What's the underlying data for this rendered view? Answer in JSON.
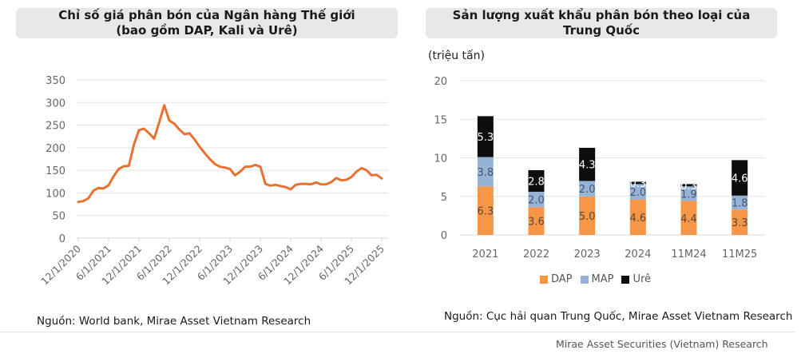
{
  "left_panel": {
    "title_line1": "Chỉ số giá phân bón của Ngân hàng Thế giới",
    "title_line2": "(bao gồm DAP, Kali và Urê)",
    "source": "Nguồn: World bank, Mirae Asset Vietnam Research"
  },
  "right_panel": {
    "title_line1": "Sản lượng xuất khẩu phân bón theo loại của",
    "title_line2": "Trung Quốc",
    "unit": "(triệu tấn)",
    "source": "Nguồn: Cục hải quan Trung Quốc, Mirae Asset Vietnam Research"
  },
  "footer": "Mirae Asset Securities (Vietnam) Research",
  "colors": {
    "line": "#e8722f",
    "dap": "#f79646",
    "map": "#95b3d7",
    "ure": "#0d0d0d",
    "grid": "#e3e3e3",
    "title_bg": "#e8e8e8"
  },
  "chart_data": [
    {
      "type": "line",
      "title": "Chỉ số giá phân bón của Ngân hàng Thế giới (bao gồm DAP, Kali và Urê)",
      "xlabel": "",
      "ylabel": "",
      "ylim": [
        0,
        350
      ],
      "yticks": [
        0,
        50,
        100,
        150,
        200,
        250,
        300,
        350
      ],
      "xtick_labels": [
        "12/1/2020",
        "6/1/2021",
        "12/1/2021",
        "6/1/2022",
        "12/1/2022",
        "6/1/2023",
        "12/1/2023",
        "6/1/2024",
        "12/1/2024",
        "6/1/2025",
        "12/1/2025"
      ],
      "grid": true,
      "x_start": "12/1/2020",
      "x_end": "12/1/2025",
      "series": [
        {
          "name": "Chỉ số giá phân bón",
          "values": [
            80,
            82,
            88,
            105,
            111,
            110,
            117,
            137,
            153,
            159,
            160,
            207,
            239,
            242,
            232,
            220,
            256,
            294,
            260,
            253,
            240,
            230,
            232,
            218,
            202,
            188,
            175,
            164,
            158,
            156,
            153,
            139,
            147,
            158,
            158,
            162,
            158,
            120,
            116,
            118,
            115,
            113,
            108,
            118,
            120,
            120,
            119,
            123,
            119,
            119,
            124,
            133,
            128,
            129,
            135,
            147,
            155,
            150,
            139,
            140,
            132
          ]
        }
      ]
    },
    {
      "type": "bar",
      "stacked": true,
      "title": "Sản lượng xuất khẩu phân bón theo loại của Trung Quốc",
      "ylabel": "(triệu tấn)",
      "xlabel": "",
      "ylim": [
        0,
        20
      ],
      "yticks": [
        0,
        5,
        10,
        15,
        20
      ],
      "grid": true,
      "legend_position": "bottom",
      "categories": [
        "2021",
        "2022",
        "2023",
        "2024",
        "11M24",
        "11M25"
      ],
      "series": [
        {
          "name": "DAP",
          "values": [
            6.3,
            3.6,
            5.0,
            4.6,
            4.4,
            3.3
          ]
        },
        {
          "name": "MAP",
          "values": [
            3.8,
            2.0,
            2.0,
            2.0,
            1.9,
            1.8
          ]
        },
        {
          "name": "Urê",
          "values": [
            5.3,
            2.8,
            4.3,
            0.3,
            0.3,
            4.6
          ]
        }
      ]
    }
  ]
}
